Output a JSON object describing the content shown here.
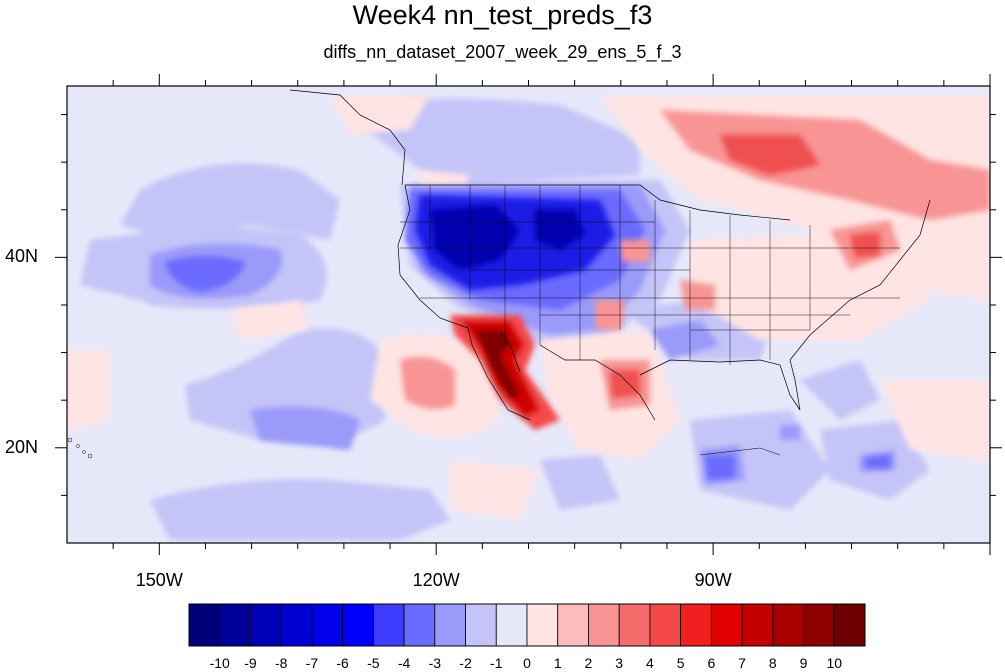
{
  "title": "Week4 nn_test_preds_f3",
  "subtitle": "diffs_nn_dataset_2007_week_29_ens_5_f_3",
  "map": {
    "lon_range": [
      -160,
      -60
    ],
    "lat_range": [
      10,
      58
    ],
    "lon_ticks": [
      {
        "value": -150,
        "label": "150W"
      },
      {
        "value": -120,
        "label": "120W"
      },
      {
        "value": -90,
        "label": "90W"
      }
    ],
    "lat_ticks": [
      {
        "value": 40,
        "label": "40N"
      },
      {
        "value": 20,
        "label": "20N"
      }
    ],
    "background_color": "#e6e8fa"
  },
  "colorbar": {
    "labels": [
      "-10",
      "-9",
      "-8",
      "-7",
      "-6",
      "-5",
      "-4",
      "-3",
      "-2",
      "-1",
      "0",
      "1",
      "2",
      "3",
      "4",
      "5",
      "6",
      "7",
      "8",
      "9",
      "10"
    ],
    "colors": [
      "#00007a",
      "#00009a",
      "#0000b8",
      "#0000d2",
      "#0000ea",
      "#0000ff",
      "#3c3cff",
      "#6a6aff",
      "#9a9afa",
      "#c4c4f8",
      "#e6e8fa",
      "#ffe4e4",
      "#fcbcbc",
      "#f89494",
      "#f66c6c",
      "#f44848",
      "#f02020",
      "#e00000",
      "#c40000",
      "#a80000",
      "#8c0000",
      "#700000"
    ]
  }
}
